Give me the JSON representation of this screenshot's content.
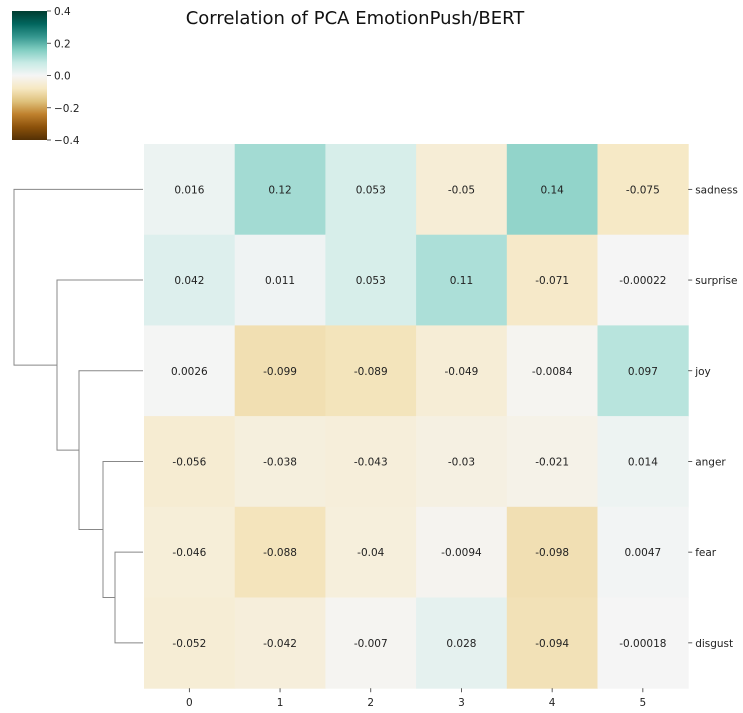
{
  "chart_data": {
    "type": "heatmap",
    "title": "Correlation of PCA EmotionPush/BERT",
    "xlabel": "",
    "ylabel": "",
    "columns": [
      "0",
      "1",
      "2",
      "3",
      "4",
      "5"
    ],
    "rows": [
      "sadness",
      "surprise",
      "joy",
      "anger",
      "fear",
      "disgust"
    ],
    "values": [
      [
        0.016,
        0.12,
        0.053,
        -0.05,
        0.14,
        -0.075
      ],
      [
        0.042,
        0.011,
        0.053,
        0.11,
        -0.071,
        -0.00022
      ],
      [
        0.0026,
        -0.099,
        -0.089,
        -0.049,
        -0.0084,
        0.097
      ],
      [
        -0.056,
        -0.038,
        -0.043,
        -0.03,
        -0.021,
        0.014
      ],
      [
        -0.046,
        -0.088,
        -0.04,
        -0.0094,
        -0.098,
        0.0047
      ],
      [
        -0.052,
        -0.042,
        -0.007,
        0.028,
        -0.094,
        -0.00018
      ]
    ],
    "labels": [
      [
        "0.016",
        "0.12",
        "0.053",
        "-0.05",
        "0.14",
        "-0.075"
      ],
      [
        "0.042",
        "0.011",
        "0.053",
        "0.11",
        "-0.071",
        "-0.00022"
      ],
      [
        "0.0026",
        "-0.099",
        "-0.089",
        "-0.049",
        "-0.0084",
        "0.097"
      ],
      [
        "-0.056",
        "-0.038",
        "-0.043",
        "-0.03",
        "-0.021",
        "0.014"
      ],
      [
        "-0.046",
        "-0.088",
        "-0.04",
        "-0.0094",
        "-0.098",
        "0.0047"
      ],
      [
        "-0.052",
        "-0.042",
        "-0.007",
        "0.028",
        "-0.094",
        "-0.00018"
      ]
    ],
    "colormap": "BrBG",
    "colorbar": {
      "range": [
        -0.4,
        0.4
      ],
      "ticks": [
        0.4,
        0.2,
        0.0,
        -0.2,
        -0.4
      ],
      "tick_labels": [
        "0.4",
        "0.2",
        "0.0",
        "−0.2",
        "−0.4"
      ]
    },
    "row_dendrogram": true
  }
}
